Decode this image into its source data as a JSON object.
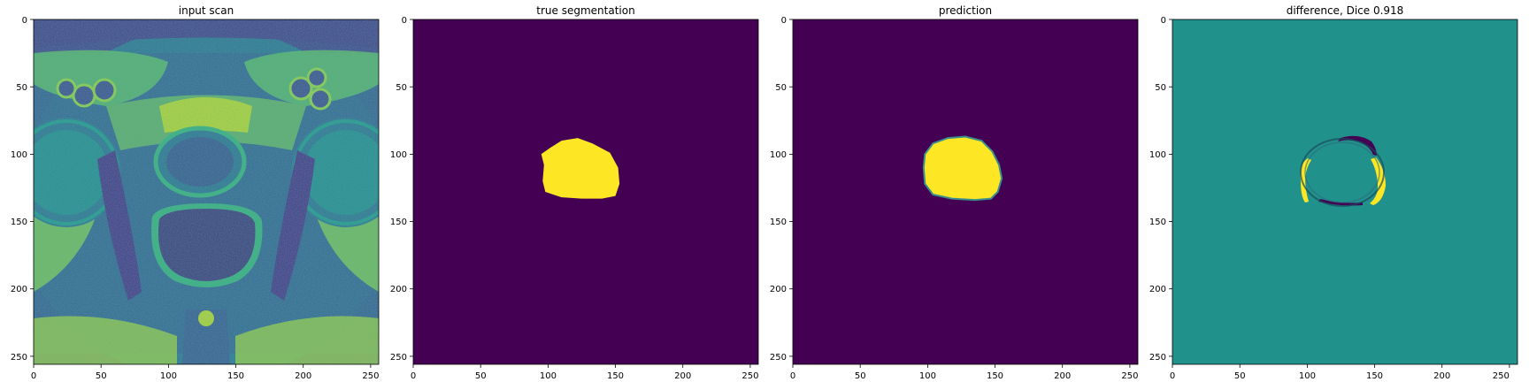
{
  "chart_data": [
    {
      "type": "heatmap",
      "title": "input scan",
      "colormap": "viridis",
      "image": "mri-axial-pelvis-scan",
      "xlim": [
        0,
        256
      ],
      "ylim": [
        256,
        0
      ],
      "xticks": [
        0,
        50,
        100,
        150,
        200,
        250
      ],
      "yticks": [
        0,
        50,
        100,
        150,
        200,
        250
      ]
    },
    {
      "type": "heatmap",
      "title": "true segmentation",
      "colormap": "viridis",
      "background_color": "#440154",
      "mask_color": "#fde725",
      "xlim": [
        0,
        256
      ],
      "ylim": [
        256,
        0
      ],
      "xticks": [
        0,
        50,
        100,
        150,
        200,
        250
      ],
      "yticks": [
        0,
        50,
        100,
        150,
        200,
        250
      ],
      "mask_outline": [
        [
          95,
          100
        ],
        [
          102,
          95
        ],
        [
          110,
          90
        ],
        [
          122,
          88
        ],
        [
          133,
          92
        ],
        [
          146,
          99
        ],
        [
          152,
          110
        ],
        [
          153,
          122
        ],
        [
          150,
          131
        ],
        [
          140,
          133
        ],
        [
          125,
          133
        ],
        [
          110,
          132
        ],
        [
          98,
          128
        ],
        [
          96,
          120
        ],
        [
          97,
          108
        ]
      ]
    },
    {
      "type": "heatmap",
      "title": "prediction",
      "colormap": "viridis",
      "background_color": "#440154",
      "mask_color": "#fde725",
      "xlim": [
        0,
        256
      ],
      "ylim": [
        256,
        0
      ],
      "xticks": [
        0,
        50,
        100,
        150,
        200,
        250
      ],
      "yticks": [
        0,
        50,
        100,
        150,
        200,
        250
      ],
      "mask_outline": [
        [
          98,
          100
        ],
        [
          104,
          92
        ],
        [
          115,
          88
        ],
        [
          128,
          87
        ],
        [
          140,
          90
        ],
        [
          148,
          98
        ],
        [
          153,
          108
        ],
        [
          155,
          118
        ],
        [
          152,
          128
        ],
        [
          147,
          133
        ],
        [
          135,
          134
        ],
        [
          118,
          133
        ],
        [
          104,
          130
        ],
        [
          98,
          122
        ],
        [
          97,
          110
        ]
      ]
    },
    {
      "type": "heatmap",
      "title": "difference, Dice 0.918",
      "colormap": "viridis",
      "background_color": "#21918c",
      "positive_color": "#fde725",
      "negative_color": "#440154",
      "dice": 0.918,
      "xlim": [
        0,
        256
      ],
      "ylim": [
        256,
        0
      ],
      "xticks": [
        0,
        50,
        100,
        150,
        200,
        250
      ],
      "yticks": [
        0,
        50,
        100,
        150,
        200,
        250
      ]
    }
  ]
}
